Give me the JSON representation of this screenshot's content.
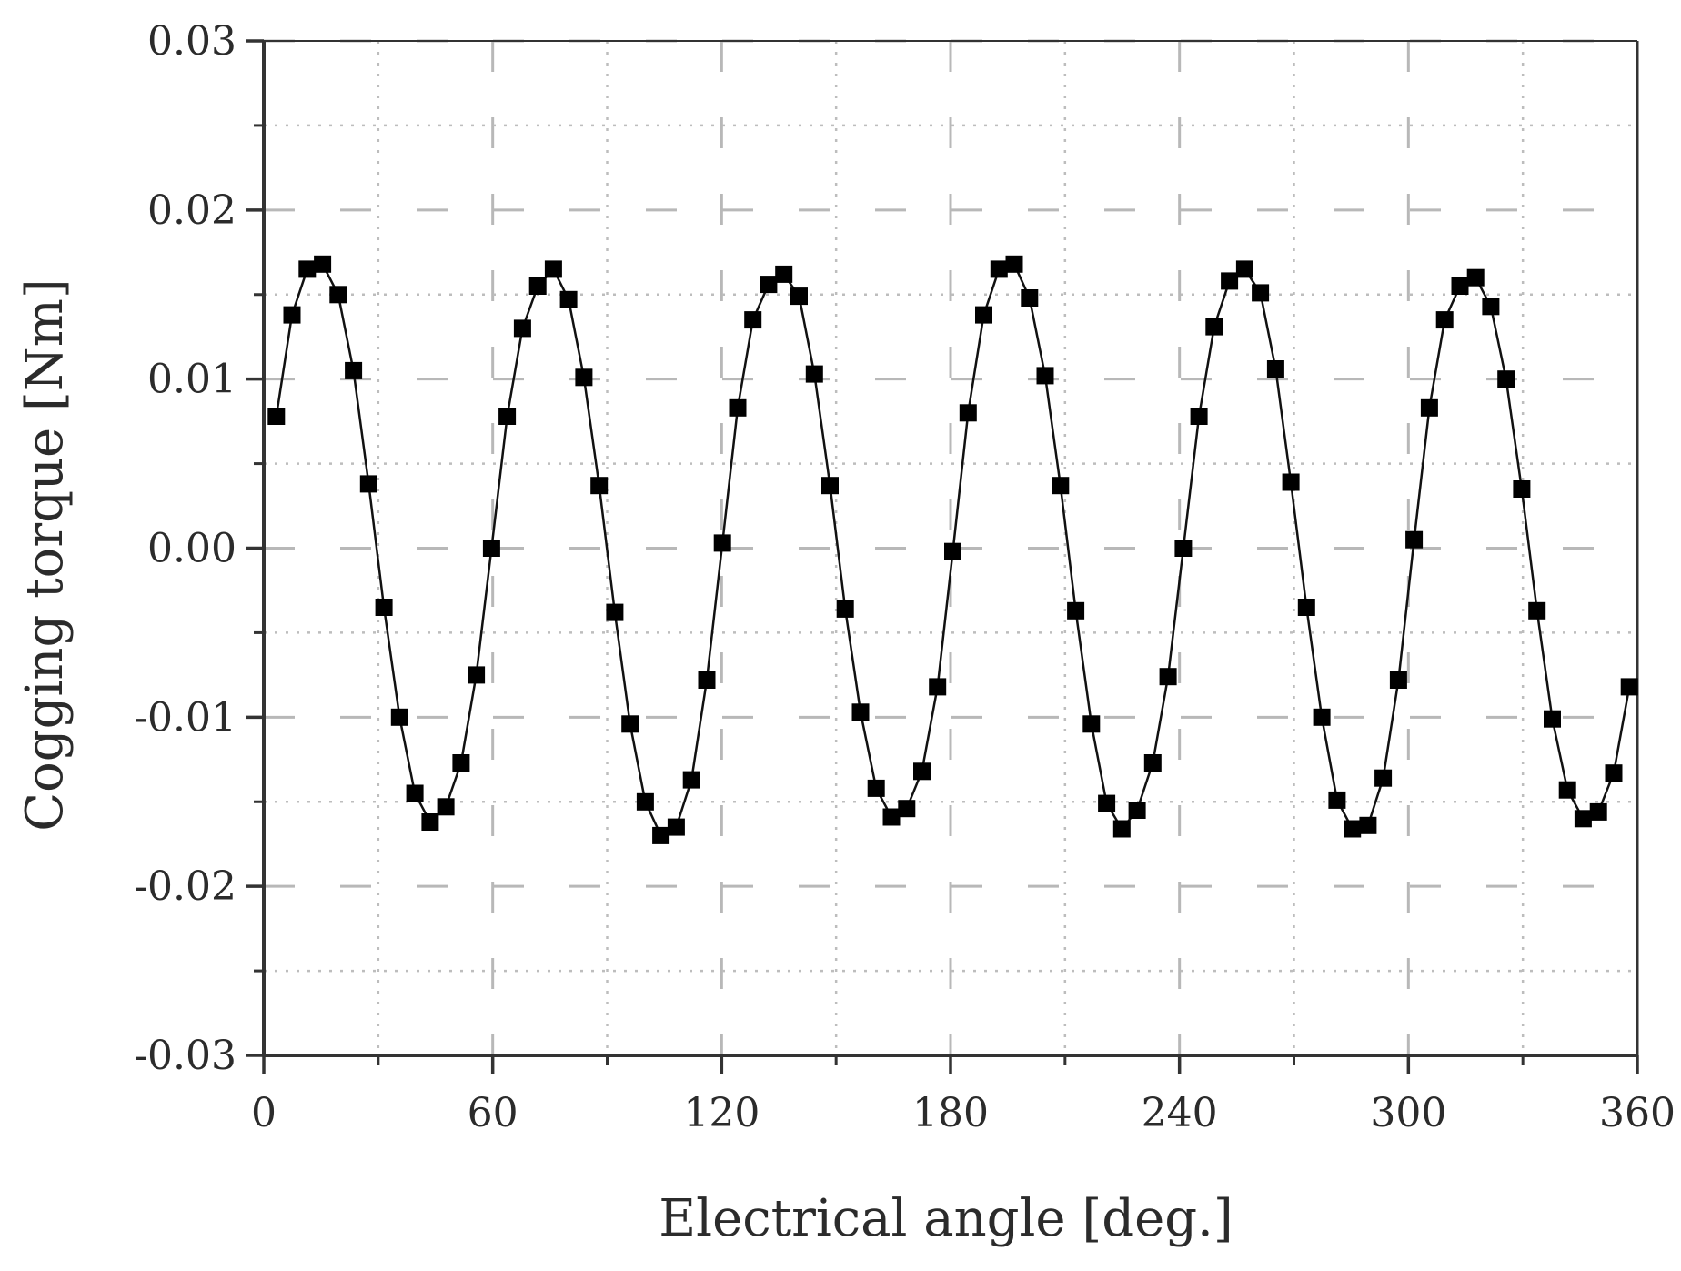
{
  "chart_data": {
    "type": "line",
    "title": "",
    "xlabel": "Electrical angle [deg.]",
    "ylabel": "Cogging torque [Nm]",
    "xlim": [
      0,
      360
    ],
    "ylim": [
      -0.03,
      0.03
    ],
    "x_ticks": [
      0,
      60,
      120,
      180,
      240,
      300,
      360
    ],
    "x_tick_labels": [
      "0",
      "60",
      "120",
      "180",
      "240",
      "300",
      "360"
    ],
    "y_ticks": [
      -0.03,
      -0.02,
      -0.01,
      0.0,
      0.01,
      0.02,
      0.03
    ],
    "y_tick_labels": [
      "-0.03",
      "-0.02",
      "-0.01",
      "0.00",
      "0.01",
      "0.02",
      "0.03"
    ],
    "grid": "on (dashed major, dotted minor)",
    "legend": "none",
    "marker": "square",
    "colors": {
      "line": "#111111",
      "marker": "#000000",
      "axis": "#333333",
      "grid_major": "#b8b8b8",
      "grid_minor": "#bdbdbd"
    },
    "series": [
      {
        "x": [
          3.3,
          7.4,
          11.4,
          15.4,
          19.5,
          23.5,
          27.5,
          31.5,
          35.6,
          39.6,
          43.6,
          47.7,
          51.7,
          55.7,
          59.7,
          63.8,
          67.8,
          71.8,
          75.9,
          79.9,
          83.9,
          87.9,
          92.0,
          96.0,
          100.0,
          104.1,
          108.1,
          112.1,
          116.1,
          120.2,
          124.2,
          128.2,
          132.3,
          136.3,
          140.3,
          144.3,
          148.4,
          152.4,
          156.4,
          160.5,
          164.5,
          168.5,
          172.5,
          176.6,
          180.6,
          184.6,
          188.7,
          192.7,
          196.7,
          200.7,
          204.8,
          208.8,
          212.8,
          216.9,
          220.9,
          224.9,
          228.9,
          233.0,
          237.0,
          241.0,
          245.1,
          249.1,
          253.1,
          257.1,
          261.2,
          265.2,
          269.2,
          273.3,
          277.3,
          281.3,
          285.3,
          289.4,
          293.4,
          297.4,
          301.5,
          305.5,
          309.5,
          313.5,
          317.6,
          321.6,
          325.6,
          329.7,
          333.7,
          337.7,
          341.7,
          345.8,
          349.8,
          353.8,
          357.9
        ],
        "y": [
          0.0078,
          0.0138,
          0.0165,
          0.0168,
          0.015,
          0.0105,
          0.0038,
          -0.0035,
          -0.01,
          -0.0145,
          -0.0162,
          -0.0153,
          -0.0127,
          -0.0075,
          0.0,
          0.0078,
          0.013,
          0.0155,
          0.0165,
          0.0147,
          0.0101,
          0.0037,
          -0.0038,
          -0.0104,
          -0.015,
          -0.017,
          -0.0165,
          -0.0137,
          -0.0078,
          0.0003,
          0.0083,
          0.0135,
          0.0156,
          0.0162,
          0.0149,
          0.0103,
          0.0037,
          -0.0036,
          -0.0097,
          -0.0142,
          -0.0159,
          -0.0154,
          -0.0132,
          -0.0082,
          -0.0002,
          0.008,
          0.0138,
          0.0165,
          0.0168,
          0.0148,
          0.0102,
          0.0037,
          -0.0037,
          -0.0104,
          -0.0151,
          -0.0166,
          -0.0155,
          -0.0127,
          -0.0076,
          0.0,
          0.0078,
          0.0131,
          0.0158,
          0.0165,
          0.0151,
          0.0106,
          0.0039,
          -0.0035,
          -0.01,
          -0.0149,
          -0.0166,
          -0.0164,
          -0.0136,
          -0.0078,
          0.0005,
          0.0083,
          0.0135,
          0.0155,
          0.016,
          0.0143,
          0.01,
          0.0035,
          -0.0037,
          -0.0101,
          -0.0143,
          -0.016,
          -0.0156,
          -0.0133,
          -0.0082
        ]
      }
    ]
  }
}
